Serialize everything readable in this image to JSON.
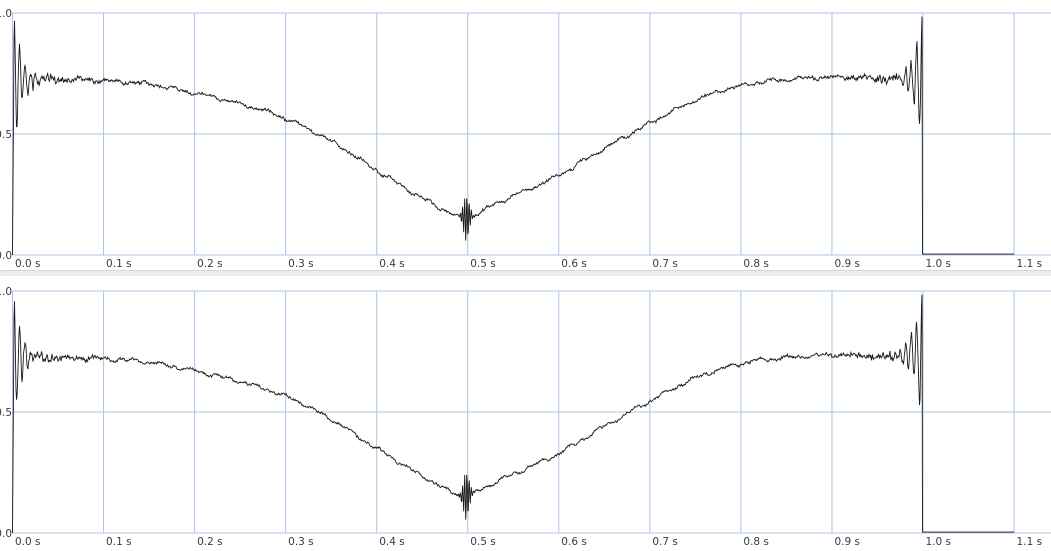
{
  "app": {
    "name": "dual-channel waveform viewer"
  },
  "colors": {
    "background": "#ffffff",
    "grid": "#a9c4e6",
    "trace": "#1a1a1a",
    "tick_label": "#3b3b3b",
    "separator": "#ededed",
    "separator_border": "#d6d6d6"
  },
  "chart_data": [
    {
      "type": "line",
      "name": "channel-1-waveform",
      "x_range": [
        0,
        1.14
      ],
      "y_range": [
        0,
        1
      ],
      "grid": true,
      "x_ticks": [
        {
          "value": 0.0,
          "label": "0.0 s"
        },
        {
          "value": 0.1,
          "label": "0.1 s"
        },
        {
          "value": 0.2,
          "label": "0.2 s"
        },
        {
          "value": 0.3,
          "label": "0.3 s"
        },
        {
          "value": 0.4,
          "label": "0.4 s"
        },
        {
          "value": 0.5,
          "label": "0.5 s"
        },
        {
          "value": 0.6,
          "label": "0.6 s"
        },
        {
          "value": 0.7,
          "label": "0.7 s"
        },
        {
          "value": 0.8,
          "label": "0.8 s"
        },
        {
          "value": 0.9,
          "label": "0.9 s"
        },
        {
          "value": 1.0,
          "label": "1.0 s"
        },
        {
          "value": 1.1,
          "label": "1.1 s"
        }
      ],
      "y_ticks": [
        {
          "value": 1.0,
          "label": "1.0"
        },
        {
          "value": 0.5,
          "label": "0.5"
        },
        {
          "value": 0.0,
          "label": "0.0"
        }
      ],
      "envelope": [
        [
          0.0,
          0.73
        ],
        [
          0.05,
          0.725
        ],
        [
          0.1,
          0.72
        ],
        [
          0.15,
          0.705
        ],
        [
          0.2,
          0.67
        ],
        [
          0.25,
          0.625
        ],
        [
          0.3,
          0.565
        ],
        [
          0.35,
          0.47
        ],
        [
          0.4,
          0.35
        ],
        [
          0.45,
          0.235
        ],
        [
          0.48,
          0.175
        ],
        [
          0.495,
          0.155
        ],
        [
          0.51,
          0.17
        ],
        [
          0.53,
          0.21
        ],
        [
          0.56,
          0.26
        ],
        [
          0.6,
          0.33
        ],
        [
          0.65,
          0.44
        ],
        [
          0.7,
          0.545
        ],
        [
          0.75,
          0.64
        ],
        [
          0.8,
          0.7
        ],
        [
          0.85,
          0.725
        ],
        [
          0.9,
          0.735
        ],
        [
          0.95,
          0.73
        ],
        [
          1.0,
          0.735
        ]
      ],
      "transients": {
        "start": {
          "rise_t": 0.0018,
          "peak": 0.97,
          "ring_amp": 0.27,
          "period": 0.006,
          "decay": 0.009
        },
        "end": {
          "t": 0.999,
          "ring_amp": 0.27,
          "period": 0.006,
          "decay": 0.009,
          "tail": 0.004,
          "tail_end": 1.1
        },
        "dip": {
          "center": 0.4985,
          "amp": 0.095,
          "sigma": 0.0045,
          "freq": 420
        }
      },
      "noise_amp": 0.007,
      "noise_seed": 20233
    },
    {
      "type": "line",
      "name": "channel-2-waveform",
      "x_range": [
        0,
        1.14
      ],
      "y_range": [
        0,
        1
      ],
      "grid": true,
      "x_ticks": [
        {
          "value": 0.0,
          "label": "0.0 s"
        },
        {
          "value": 0.1,
          "label": "0.1 s"
        },
        {
          "value": 0.2,
          "label": "0.2 s"
        },
        {
          "value": 0.3,
          "label": "0.3 s"
        },
        {
          "value": 0.4,
          "label": "0.4 s"
        },
        {
          "value": 0.5,
          "label": "0.5 s"
        },
        {
          "value": 0.6,
          "label": "0.6 s"
        },
        {
          "value": 0.7,
          "label": "0.7 s"
        },
        {
          "value": 0.8,
          "label": "0.8 s"
        },
        {
          "value": 0.9,
          "label": "0.9 s"
        },
        {
          "value": 1.0,
          "label": "1.0 s"
        },
        {
          "value": 1.1,
          "label": "1.1 s"
        }
      ],
      "y_ticks": [
        {
          "value": 1.0,
          "label": "1.0"
        },
        {
          "value": 0.5,
          "label": "0.5"
        },
        {
          "value": 0.0,
          "label": "0.0"
        }
      ],
      "envelope": [
        [
          0.0,
          0.73
        ],
        [
          0.05,
          0.725
        ],
        [
          0.1,
          0.72
        ],
        [
          0.15,
          0.705
        ],
        [
          0.2,
          0.67
        ],
        [
          0.25,
          0.625
        ],
        [
          0.3,
          0.565
        ],
        [
          0.35,
          0.47
        ],
        [
          0.4,
          0.35
        ],
        [
          0.45,
          0.235
        ],
        [
          0.48,
          0.175
        ],
        [
          0.495,
          0.155
        ],
        [
          0.51,
          0.17
        ],
        [
          0.53,
          0.21
        ],
        [
          0.56,
          0.26
        ],
        [
          0.6,
          0.33
        ],
        [
          0.65,
          0.44
        ],
        [
          0.7,
          0.545
        ],
        [
          0.75,
          0.64
        ],
        [
          0.8,
          0.7
        ],
        [
          0.85,
          0.725
        ],
        [
          0.9,
          0.735
        ],
        [
          0.95,
          0.73
        ],
        [
          1.0,
          0.735
        ]
      ],
      "transients": {
        "start": {
          "rise_t": 0.0018,
          "peak": 0.97,
          "ring_amp": 0.27,
          "period": 0.006,
          "decay": 0.009
        },
        "end": {
          "t": 0.999,
          "ring_amp": 0.27,
          "period": 0.006,
          "decay": 0.009,
          "tail": 0.004,
          "tail_end": 1.1
        },
        "dip": {
          "center": 0.4985,
          "amp": 0.105,
          "sigma": 0.0045,
          "freq": 420
        }
      },
      "noise_amp": 0.007,
      "noise_seed": 98761
    }
  ]
}
